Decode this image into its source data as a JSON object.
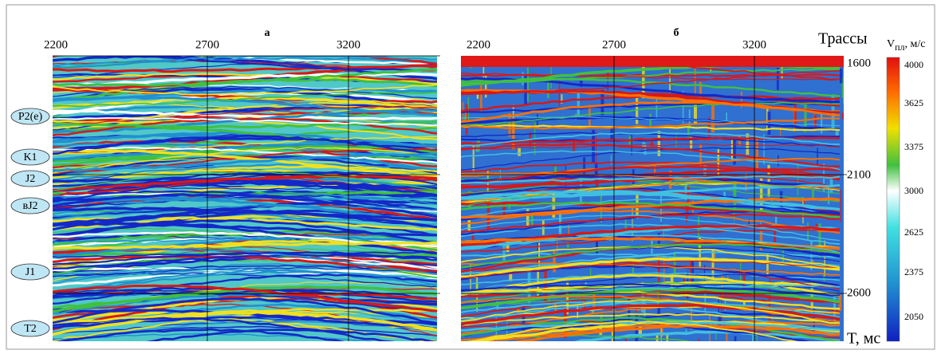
{
  "panels": [
    {
      "title": "а",
      "x_ticks": [
        "2200",
        "2700",
        "3200"
      ]
    },
    {
      "title": "б",
      "x_ticks": [
        "2200",
        "2700",
        "3200"
      ]
    }
  ],
  "x_axis_label": "Трассы",
  "y_axis_label": "T, мс",
  "y_ticks": [
    "1600",
    "2100",
    "2600"
  ],
  "horizons": [
    "P2(e)",
    "K1",
    "J2",
    "вJ2",
    "J1",
    "T2"
  ],
  "colorbar": {
    "label_main": "V",
    "label_sub": "пл",
    "label_unit": ", м/с",
    "ticks": [
      "4000",
      "3625",
      "3375",
      "3000",
      "2625",
      "2375",
      "2050"
    ]
  }
}
